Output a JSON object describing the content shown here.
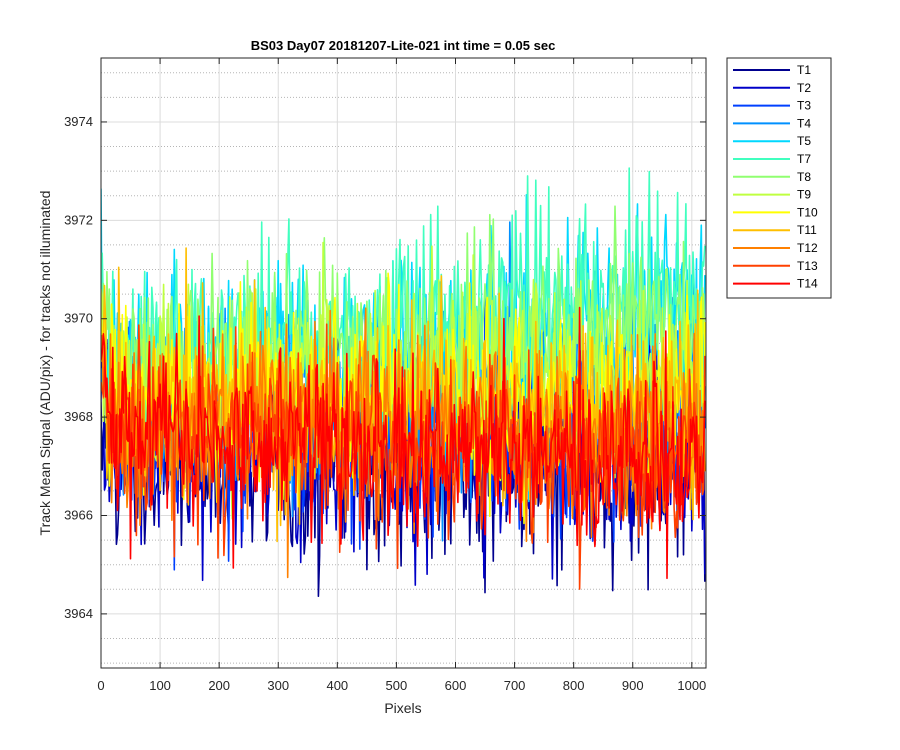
{
  "chart_data": {
    "type": "line",
    "title": "BS03 Day07 20181207-Lite-021 int time = 0.05 sec",
    "xlabel": "Pixels",
    "ylabel": "Track Mean Signal (ADU/pix) - for tracks not illuminated",
    "xlim": [
      0,
      1024
    ],
    "ylim": [
      3962.9,
      3975.3
    ],
    "xticks": [
      0,
      100,
      200,
      300,
      400,
      500,
      600,
      700,
      800,
      900,
      1000
    ],
    "yticks": [
      3964,
      3966,
      3968,
      3970,
      3972,
      3974
    ],
    "grid": true,
    "minor_grid_y": true,
    "legend_position": "outside-right",
    "series": [
      {
        "name": "T1",
        "color": "#00008F",
        "mean_start": 3967.2,
        "mean_end": 3966.9,
        "noise": 0.95
      },
      {
        "name": "T2",
        "color": "#0000C8",
        "mean_start": 3967.4,
        "mean_end": 3967.0,
        "noise": 0.95
      },
      {
        "name": "T3",
        "color": "#0040FF",
        "mean_start": 3967.8,
        "mean_end": 3967.7,
        "noise": 0.9
      },
      {
        "name": "T4",
        "color": "#0090FF",
        "mean_start": 3968.4,
        "mean_end": 3968.6,
        "noise": 0.9
      },
      {
        "name": "T5",
        "color": "#00D8FF",
        "mean_start": 3968.8,
        "mean_end": 3970.1,
        "noise": 0.95
      },
      {
        "name": "T7",
        "color": "#40FFBF",
        "mean_start": 3969.0,
        "mean_end": 3970.6,
        "noise": 1.0
      },
      {
        "name": "T8",
        "color": "#90FF70",
        "mean_start": 3968.9,
        "mean_end": 3969.9,
        "noise": 0.9
      },
      {
        "name": "T9",
        "color": "#BFFF40",
        "mean_start": 3968.6,
        "mean_end": 3969.0,
        "noise": 0.9
      },
      {
        "name": "T10",
        "color": "#FFFF00",
        "mean_start": 3968.6,
        "mean_end": 3968.2,
        "noise": 0.9
      },
      {
        "name": "T11",
        "color": "#FFBF00",
        "mean_start": 3968.2,
        "mean_end": 3968.0,
        "noise": 0.9
      },
      {
        "name": "T12",
        "color": "#FF8000",
        "mean_start": 3967.9,
        "mean_end": 3967.5,
        "noise": 0.9
      },
      {
        "name": "T13",
        "color": "#FF4000",
        "mean_start": 3967.6,
        "mean_end": 3967.2,
        "noise": 0.9
      },
      {
        "name": "T14",
        "color": "#FF0000",
        "mean_start": 3967.6,
        "mean_end": 3967.1,
        "noise": 0.85
      }
    ]
  }
}
